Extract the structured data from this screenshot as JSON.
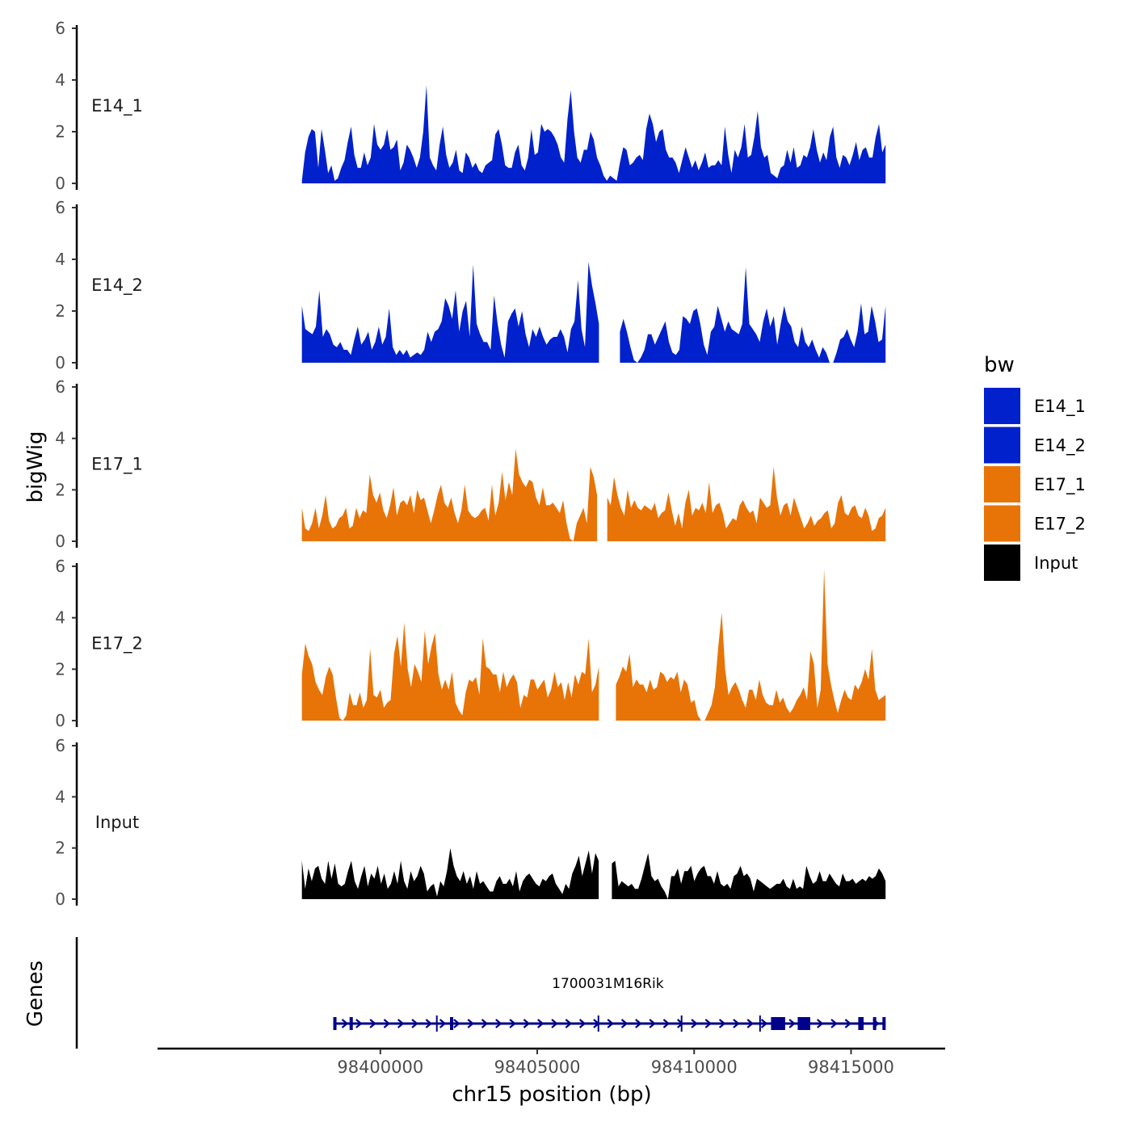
{
  "chart_data": {
    "type": "area",
    "tracks": [
      {
        "name": "E14_1",
        "ylim": [
          0,
          6
        ],
        "yticks": [
          0,
          2,
          4,
          6
        ],
        "values": [
          0.1,
          1.2,
          1.8,
          2.1,
          2.0,
          0.6,
          2.1,
          1.3,
          0.4,
          0.7,
          0.1,
          0.2,
          0.6,
          0.9,
          1.6,
          2.2,
          1.1,
          0.6,
          0.6,
          1.2,
          0.7,
          1.0,
          2.3,
          1.5,
          1.3,
          1.5,
          2.1,
          1.3,
          1.4,
          1.7,
          0.5,
          0.8,
          1.5,
          1.3,
          1.0,
          0.6,
          1.0,
          2.0,
          3.8,
          1.0,
          0.7,
          0.5,
          1.5,
          2.2,
          1.1,
          0.6,
          0.8,
          1.3,
          0.5,
          0.4,
          1.2,
          1.0,
          0.6,
          0.8,
          0.5,
          0.4,
          0.7,
          0.8,
          0.9,
          1.9,
          2.1,
          1.5,
          0.7,
          0.6,
          0.6,
          1.2,
          1.5,
          0.7,
          0.5,
          1.0,
          2.1,
          1.1,
          1.2,
          2.3,
          2.0,
          2.1,
          2.0,
          1.8,
          1.5,
          1.0,
          0.8,
          2.5,
          3.6,
          2.0,
          1.0,
          0.8,
          1.3,
          1.3,
          2.0,
          1.7,
          1.0,
          0.7,
          0.3,
          0.1,
          0.3,
          0.2,
          0.1,
          0.8,
          1.4,
          1.3,
          0.7,
          0.8,
          1.0,
          1.1,
          0.9,
          2.1,
          2.7,
          2.3,
          1.6,
          2.0,
          2.1,
          1.3,
          1.0,
          1.0,
          0.8,
          0.4,
          0.9,
          1.4,
          1.0,
          0.6,
          0.9,
          0.5,
          0.8,
          1.2,
          0.6,
          0.7,
          0.7,
          0.9,
          0.7,
          2.2,
          1.1,
          0.4,
          1.3,
          1.0,
          1.4,
          2.3,
          1.0,
          1.1,
          1.8,
          2.8,
          1.4,
          1.0,
          1.1,
          0.4,
          0.3,
          0.2,
          0.6,
          0.7,
          1.3,
          0.8,
          1.4,
          0.6,
          0.7,
          1.1,
          1.0,
          1.4,
          2.1,
          1.3,
          0.8,
          1.2,
          0.9,
          1.8,
          2.2,
          1.0,
          0.6,
          1.1,
          1.0,
          0.7,
          1.1,
          1.6,
          0.9,
          1.3,
          1.4,
          1.0,
          1.0,
          1.8,
          2.3,
          1.2,
          1.5
        ]
      },
      {
        "name": "E14_2",
        "ylim": [
          0,
          6
        ],
        "yticks": [
          0,
          2,
          4,
          6
        ],
        "values": [
          2.2,
          1.3,
          1.2,
          1.1,
          1.4,
          2.8,
          1.0,
          1.3,
          1.1,
          0.7,
          0.6,
          0.8,
          0.5,
          0.5,
          0.3,
          0.9,
          1.4,
          0.7,
          0.9,
          1.2,
          0.5,
          0.8,
          1.4,
          0.7,
          1.0,
          2.1,
          0.6,
          0.3,
          0.5,
          0.3,
          0.5,
          0.2,
          0.3,
          0.4,
          0.3,
          0.5,
          1.2,
          0.8,
          1.2,
          1.3,
          1.6,
          2.5,
          2.2,
          1.7,
          2.8,
          1.2,
          2.0,
          2.4,
          1.0,
          3.8,
          1.5,
          1.1,
          0.8,
          0.8,
          0.5,
          2.6,
          1.5,
          0.7,
          0.2,
          1.6,
          1.9,
          2.1,
          1.4,
          2.0,
          1.1,
          0.6,
          1.3,
          1.0,
          1.4,
          1.0,
          0.7,
          0.9,
          1.0,
          1.0,
          1.3,
          1.0,
          0.4,
          1.3,
          1.6,
          3.2,
          1.3,
          0.6,
          3.9,
          3.0,
          2.3,
          1.5,
          1.2,
          1.6,
          2.0,
          3.0,
          2.0,
          1.2,
          1.7,
          1.2,
          0.6,
          0.1,
          0.0,
          0.2,
          0.5,
          1.1,
          1.1,
          0.7,
          1.0,
          1.3,
          1.6,
          0.8,
          0.4,
          0.3,
          0.5,
          1.8,
          1.7,
          1.5,
          2.0,
          2.1,
          1.5,
          0.7,
          0.3,
          1.2,
          1.4,
          2.2,
          1.7,
          1.2,
          1.6,
          1.3,
          1.2,
          1.1,
          1.5,
          3.7,
          1.5,
          1.3,
          1.1,
          0.8,
          1.6,
          2.1,
          1.4,
          1.8,
          0.7,
          1.5,
          2.2,
          1.6,
          1.4,
          0.8,
          0.6,
          1.4,
          0.8,
          0.6,
          0.9,
          0.5,
          0.2,
          0.6,
          0.4,
          0.0,
          0.0,
          0.4,
          0.9,
          1.0,
          1.3,
          0.9,
          0.6,
          1.2,
          2.3,
          1.1,
          1.2,
          2.2,
          1.6,
          0.8,
          0.9,
          2.2
        ]
      },
      {
        "name": "E17_1",
        "ylim": [
          0,
          6
        ],
        "yticks": [
          0,
          2,
          4,
          6
        ],
        "values": [
          1.3,
          0.5,
          0.4,
          0.7,
          1.3,
          0.5,
          1.0,
          1.8,
          0.8,
          0.5,
          0.6,
          0.9,
          1.0,
          1.3,
          0.5,
          0.6,
          1.3,
          0.9,
          1.2,
          1.1,
          2.6,
          1.8,
          1.5,
          1.9,
          1.2,
          0.9,
          1.4,
          2.1,
          1.0,
          1.5,
          1.6,
          1.4,
          1.8,
          1.1,
          2.0,
          1.6,
          1.7,
          1.2,
          0.7,
          1.2,
          1.8,
          2.2,
          1.5,
          1.3,
          1.7,
          1.1,
          0.7,
          1.2,
          2.2,
          1.2,
          1.0,
          0.9,
          1.0,
          1.2,
          1.3,
          0.8,
          2.2,
          1.0,
          1.5,
          2.7,
          1.6,
          2.3,
          1.8,
          3.6,
          2.6,
          2.3,
          2.1,
          2.4,
          2.3,
          1.7,
          1.4,
          2.1,
          1.4,
          1.4,
          1.5,
          1.3,
          1.1,
          1.6,
          0.7,
          0.1,
          0.0,
          0.7,
          1.0,
          1.3,
          0.7,
          2.9,
          2.5,
          1.8,
          1.2,
          1.3,
          1.7,
          1.4,
          2.5,
          1.8,
          1.3,
          1.0,
          2.0,
          1.3,
          1.6,
          1.3,
          1.2,
          1.4,
          1.3,
          1.2,
          1.5,
          0.9,
          1.1,
          1.2,
          1.9,
          1.2,
          0.6,
          1.1,
          0.5,
          1.5,
          2.0,
          1.0,
          1.3,
          1.2,
          1.5,
          1.1,
          2.3,
          1.1,
          1.4,
          1.5,
          1.1,
          0.5,
          0.7,
          0.9,
          0.8,
          1.4,
          1.6,
          1.3,
          1.1,
          1.2,
          0.7,
          1.7,
          1.5,
          1.3,
          1.4,
          2.9,
          1.7,
          1.0,
          1.4,
          1.5,
          1.0,
          1.7,
          1.3,
          0.9,
          0.5,
          0.7,
          1.0,
          0.6,
          0.8,
          0.9,
          1.1,
          1.2,
          0.5,
          0.7,
          1.5,
          1.8,
          1.1,
          1.0,
          1.3,
          1.4,
          1.0,
          0.9,
          1.3,
          1.0,
          0.4,
          0.5,
          0.9,
          1.0,
          1.3
        ]
      },
      {
        "name": "E17_2",
        "ylim": [
          0,
          6
        ],
        "yticks": [
          0,
          2,
          4,
          6
        ],
        "values": [
          1.8,
          3.0,
          2.5,
          2.2,
          1.5,
          1.2,
          1.0,
          1.7,
          2.1,
          1.8,
          0.9,
          0.1,
          0.0,
          0.2,
          1.1,
          0.6,
          0.6,
          1.1,
          0.5,
          0.8,
          2.8,
          1.0,
          0.9,
          1.2,
          0.5,
          0.7,
          0.8,
          2.6,
          3.3,
          2.1,
          3.8,
          2.0,
          1.3,
          2.2,
          1.9,
          1.5,
          3.5,
          2.2,
          2.9,
          3.4,
          1.8,
          1.2,
          1.6,
          1.2,
          1.9,
          0.7,
          0.4,
          0.2,
          1.1,
          1.6,
          1.5,
          1.7,
          1.0,
          3.2,
          2.1,
          2.0,
          1.8,
          1.8,
          1.1,
          1.9,
          1.3,
          1.6,
          1.8,
          1.5,
          0.5,
          1.0,
          0.9,
          1.6,
          1.6,
          1.2,
          1.4,
          1.6,
          0.9,
          1.2,
          1.9,
          1.3,
          1.5,
          0.8,
          1.5,
          0.9,
          1.8,
          1.4,
          1.9,
          1.8,
          3.2,
          1.1,
          1.4,
          2.1,
          2.5,
          1.8,
          2.5,
          1.5,
          1.4,
          1.7,
          2.1,
          1.9,
          2.6,
          1.3,
          1.6,
          1.4,
          1.4,
          1.1,
          1.6,
          1.2,
          1.3,
          1.9,
          1.8,
          1.5,
          1.7,
          1.6,
          1.9,
          1.1,
          1.6,
          1.4,
          0.7,
          0.8,
          0.2,
          0.0,
          0.0,
          0.3,
          0.6,
          1.3,
          2.9,
          4.2,
          2.0,
          1.0,
          1.3,
          1.5,
          1.2,
          0.8,
          0.5,
          1.2,
          1.2,
          0.8,
          1.6,
          1.0,
          0.7,
          0.6,
          0.6,
          1.2,
          0.7,
          0.9,
          0.5,
          0.3,
          0.5,
          0.8,
          1.0,
          1.3,
          0.8,
          2.7,
          2.2,
          0.5,
          1.2,
          5.9,
          2.2,
          1.4,
          0.8,
          0.3,
          0.8,
          1.2,
          0.9,
          0.8,
          1.4,
          1.2,
          1.5,
          2.0,
          1.6,
          2.8,
          1.2,
          0.8,
          0.9,
          1.0
        ]
      },
      {
        "name": "Input",
        "ylim": [
          0,
          6
        ],
        "yticks": [
          0,
          2,
          4,
          6
        ],
        "values": [
          1.5,
          0.4,
          1.2,
          0.7,
          1.2,
          1.3,
          0.8,
          0.6,
          1.5,
          0.8,
          1.4,
          0.6,
          0.5,
          0.6,
          1.1,
          1.5,
          0.7,
          0.4,
          0.9,
          1.3,
          0.5,
          1.0,
          0.8,
          1.3,
          0.6,
          1.0,
          0.4,
          0.6,
          1.1,
          0.6,
          1.5,
          0.7,
          0.4,
          1.1,
          0.7,
          0.9,
          1.3,
          1.0,
          0.3,
          0.5,
          0.6,
          0.1,
          0.7,
          0.5,
          1.1,
          2.0,
          1.3,
          0.9,
          0.7,
          1.1,
          0.6,
          0.9,
          0.4,
          1.1,
          0.6,
          0.7,
          0.5,
          0.3,
          0.3,
          0.7,
          0.9,
          0.6,
          0.6,
          0.8,
          0.5,
          1.1,
          0.3,
          0.7,
          0.9,
          1.0,
          0.8,
          0.6,
          0.5,
          0.8,
          0.7,
          0.9,
          1.0,
          0.6,
          0.4,
          0.2,
          0.6,
          0.4,
          1.0,
          1.3,
          1.7,
          0.9,
          1.4,
          1.9,
          1.0,
          1.8,
          1.5,
          0.9,
          0.6,
          0.9,
          1.4,
          1.5,
          0.5,
          0.7,
          0.6,
          0.5,
          0.6,
          0.4,
          0.4,
          0.8,
          1.3,
          1.8,
          0.9,
          0.7,
          0.8,
          0.5,
          0.3,
          0.0,
          0.9,
          0.9,
          1.2,
          0.6,
          1.1,
          1.1,
          1.3,
          0.7,
          1.0,
          1.2,
          1.3,
          0.9,
          0.9,
          0.6,
          1.1,
          0.6,
          0.5,
          0.6,
          0.4,
          0.9,
          1.0,
          1.3,
          0.9,
          1.0,
          0.8,
          0.3,
          0.8,
          0.7,
          0.6,
          0.5,
          0.4,
          0.5,
          0.6,
          0.6,
          0.8,
          0.5,
          0.4,
          0.8,
          0.4,
          0.5,
          0.4,
          1.3,
          0.9,
          0.6,
          0.7,
          1.1,
          0.7,
          0.7,
          1.0,
          0.8,
          0.6,
          0.5,
          1.0,
          0.7,
          0.7,
          0.8,
          0.6,
          0.7,
          0.8,
          0.7,
          0.9,
          0.8,
          0.9,
          1.2,
          1.0,
          0.7
        ]
      }
    ],
    "gaps": [
      {
        "track": "E14_2",
        "from": 98407000,
        "to": 98407600
      },
      {
        "track": "E17_1",
        "from": 98407000,
        "to": 98407200
      },
      {
        "track": "E17_2",
        "from": 98407000,
        "to": 98407500
      },
      {
        "track": "Input",
        "from": 98407000,
        "to": 98407300
      }
    ],
    "x_range": [
      98397500,
      98416100
    ],
    "xlim": [
      98392900,
      98418000
    ],
    "x_ticks": [
      98400000,
      98405000,
      98410000,
      98415000
    ],
    "xlabel": "chr15 position (bp)",
    "ylabel": "bigWig",
    "legend": {
      "title": "bw",
      "position": "right",
      "items": [
        {
          "label": "E14_1",
          "color": "#0021CC"
        },
        {
          "label": "E14_2",
          "color": "#0021CC"
        },
        {
          "label": "E17_1",
          "color": "#E87407"
        },
        {
          "label": "E17_2",
          "color": "#E87407"
        },
        {
          "label": "Input",
          "color": "#000000"
        }
      ]
    },
    "genes": {
      "panel_label": "Genes",
      "name": "1700031M16Rik",
      "color": "#00008B",
      "start": 98398500,
      "end": 98416100,
      "strand": "+",
      "exons": [
        [
          98398500,
          98398560
        ],
        [
          98399020,
          98399090
        ],
        [
          98402220,
          98402290
        ],
        [
          98412450,
          98412900
        ],
        [
          98413300,
          98413700
        ],
        [
          98415230,
          98415400
        ],
        [
          98415700,
          98415780
        ],
        [
          98416000,
          98416100
        ]
      ],
      "introns_markers": [
        98401800,
        98406950,
        98409600,
        98412100
      ]
    }
  }
}
